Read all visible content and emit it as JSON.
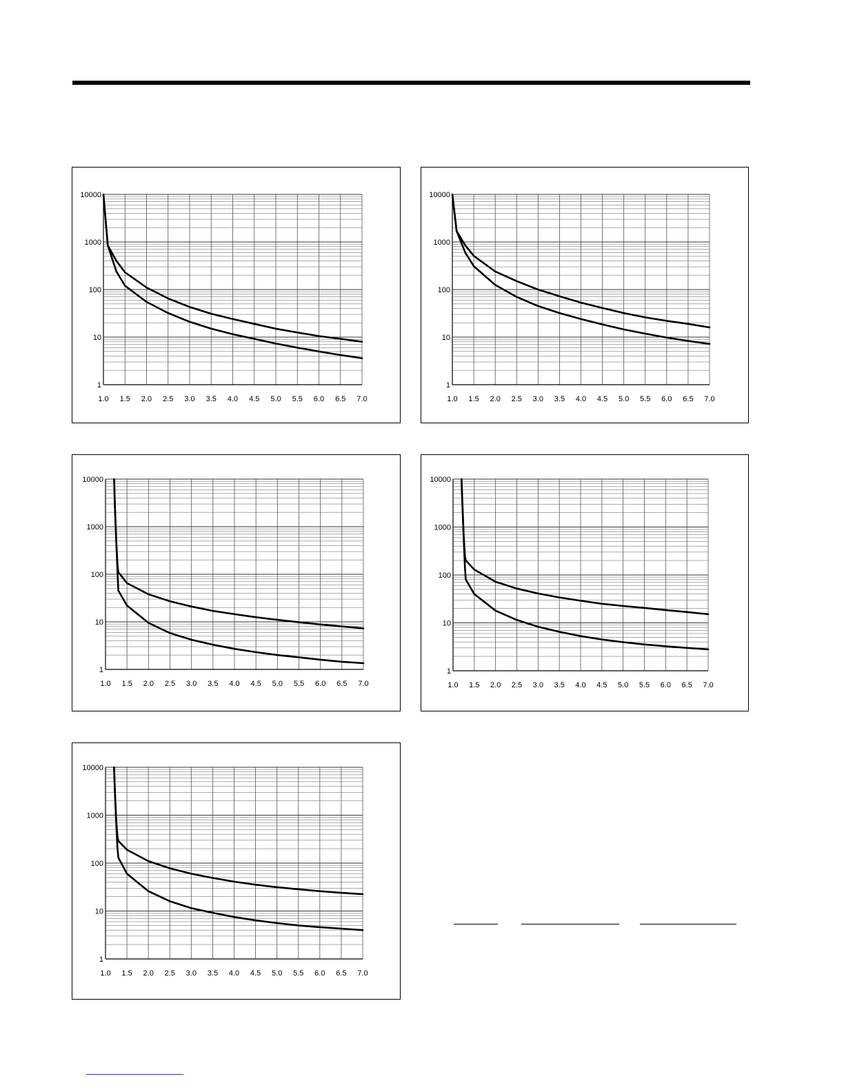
{
  "chart_data": [
    {
      "type": "line",
      "log_y": true,
      "ylim": [
        1,
        10000
      ],
      "xlim": [
        1.0,
        7.0
      ],
      "x_ticks": [
        "1.0",
        "1.5",
        "2.0",
        "2.5",
        "3.0",
        "3.5",
        "4.0",
        "4.5",
        "5.0",
        "5.5",
        "6.0",
        "6.5",
        "7.0"
      ],
      "y_ticks": [
        "1",
        "10",
        "100",
        "1000",
        "10000"
      ],
      "grid": true,
      "series": [
        {
          "x": [
            1.0,
            1.1,
            1.3,
            1.5,
            2.0,
            2.5,
            3.0,
            3.5,
            4.0,
            4.5,
            5.0,
            5.5,
            6.0,
            6.5,
            7.0
          ],
          "y": [
            10000,
            850,
            400,
            230,
            110,
            65,
            43,
            31,
            24,
            19,
            15,
            12.5,
            10.5,
            9.2,
            8
          ]
        },
        {
          "x": [
            1.0,
            1.1,
            1.3,
            1.5,
            2.0,
            2.5,
            3.0,
            3.5,
            4.0,
            4.5,
            5.0,
            5.5,
            6.0,
            6.5,
            7.0
          ],
          "y": [
            10000,
            850,
            240,
            120,
            55,
            32,
            21,
            15,
            11.5,
            9.2,
            7.3,
            6.0,
            5.0,
            4.2,
            3.6
          ]
        }
      ]
    },
    {
      "type": "line",
      "log_y": true,
      "ylim": [
        1,
        10000
      ],
      "xlim": [
        1.0,
        7.0
      ],
      "x_ticks": [
        "1.0",
        "1.5",
        "2.0",
        "2.5",
        "3.0",
        "3.5",
        "4.0",
        "4.5",
        "5.0",
        "5.5",
        "6.0",
        "6.5",
        "7.0"
      ],
      "y_ticks": [
        "1",
        "10",
        "100",
        "1000",
        "10000"
      ],
      "grid": true,
      "series": [
        {
          "x": [
            1.0,
            1.1,
            1.3,
            1.5,
            2.0,
            2.5,
            3.0,
            3.5,
            4.0,
            4.5,
            5.0,
            5.5,
            6.0,
            6.5,
            7.0
          ],
          "y": [
            10000,
            1700,
            850,
            510,
            240,
            150,
            100,
            72,
            53,
            41,
            32,
            26,
            22,
            19,
            16
          ]
        },
        {
          "x": [
            1.0,
            1.1,
            1.3,
            1.5,
            2.0,
            2.5,
            3.0,
            3.5,
            4.0,
            4.5,
            5.0,
            5.5,
            6.0,
            6.5,
            7.0
          ],
          "y": [
            10000,
            1700,
            600,
            310,
            125,
            70,
            45,
            32,
            24,
            18.5,
            14.5,
            11.8,
            9.8,
            8.3,
            7.2
          ]
        }
      ]
    },
    {
      "type": "line",
      "log_y": true,
      "ylim": [
        1,
        10000
      ],
      "xlim": [
        1.0,
        7.0
      ],
      "x_ticks": [
        "1.0",
        "1.5",
        "2.0",
        "2.5",
        "3.0",
        "3.5",
        "4.0",
        "4.5",
        "5.0",
        "5.5",
        "6.0",
        "6.5",
        "7.0"
      ],
      "y_ticks": [
        "1",
        "10",
        "100",
        "1000",
        "10000"
      ],
      "grid": true,
      "series": [
        {
          "x": [
            1.2,
            1.22,
            1.25,
            1.28,
            1.3,
            1.5,
            2.0,
            2.5,
            3.0,
            3.5,
            4.0,
            4.5,
            5.0,
            5.5,
            6.0,
            6.5,
            7.0
          ],
          "y": [
            10000,
            2500,
            500,
            150,
            110,
            65,
            38,
            27,
            21,
            17,
            14.5,
            12.5,
            11,
            9.8,
            8.8,
            8,
            7.3
          ]
        },
        {
          "x": [
            1.2,
            1.22,
            1.25,
            1.28,
            1.3,
            1.5,
            2.0,
            2.5,
            3.0,
            3.5,
            4.0,
            4.5,
            5.0,
            5.5,
            6.0,
            6.5,
            7.0
          ],
          "y": [
            10000,
            2500,
            500,
            100,
            45,
            22,
            9.5,
            5.8,
            4.2,
            3.3,
            2.7,
            2.3,
            2.0,
            1.8,
            1.6,
            1.45,
            1.35
          ]
        }
      ]
    },
    {
      "type": "line",
      "log_y": true,
      "ylim": [
        1,
        10000
      ],
      "xlim": [
        1.0,
        7.0
      ],
      "x_ticks": [
        "1.0",
        "1.5",
        "2.0",
        "2.5",
        "3.0",
        "3.5",
        "4.0",
        "4.5",
        "5.0",
        "5.5",
        "6.0",
        "6.5",
        "7.0"
      ],
      "y_ticks": [
        "1",
        "10",
        "100",
        "1000",
        "10000"
      ],
      "grid": true,
      "series": [
        {
          "x": [
            1.2,
            1.22,
            1.25,
            1.28,
            1.3,
            1.5,
            2.0,
            2.5,
            3.0,
            3.5,
            4.0,
            4.5,
            5.0,
            5.5,
            6.0,
            6.5,
            7.0
          ],
          "y": [
            10000,
            3000,
            700,
            250,
            200,
            130,
            72,
            52,
            41,
            34,
            29,
            25,
            22.5,
            20.5,
            18.5,
            16.8,
            15.2
          ]
        },
        {
          "x": [
            1.2,
            1.22,
            1.25,
            1.28,
            1.3,
            1.5,
            2.0,
            2.5,
            3.0,
            3.5,
            4.0,
            4.5,
            5.0,
            5.5,
            6.0,
            6.5,
            7.0
          ],
          "y": [
            10000,
            3000,
            600,
            140,
            80,
            40,
            18,
            11.5,
            8.3,
            6.5,
            5.3,
            4.5,
            3.95,
            3.55,
            3.25,
            3.0,
            2.8
          ]
        }
      ]
    },
    {
      "type": "line",
      "log_y": true,
      "ylim": [
        1,
        10000
      ],
      "xlim": [
        1.0,
        7.0
      ],
      "x_ticks": [
        "1.0",
        "1.5",
        "2.0",
        "2.5",
        "3.0",
        "3.5",
        "4.0",
        "4.5",
        "5.0",
        "5.5",
        "6.0",
        "6.5",
        "7.0"
      ],
      "y_ticks": [
        "1",
        "10",
        "100",
        "1000",
        "10000"
      ],
      "grid": true,
      "series": [
        {
          "x": [
            1.2,
            1.22,
            1.25,
            1.28,
            1.3,
            1.5,
            2.0,
            2.5,
            3.0,
            3.5,
            4.0,
            4.5,
            5.0,
            5.5,
            6.0,
            6.5,
            7.0
          ],
          "y": [
            10000,
            3000,
            800,
            350,
            290,
            190,
            110,
            78,
            60,
            49,
            41,
            35.5,
            31.5,
            28.5,
            26,
            24,
            22.5
          ]
        },
        {
          "x": [
            1.2,
            1.22,
            1.25,
            1.28,
            1.3,
            1.5,
            2.0,
            2.5,
            3.0,
            3.5,
            4.0,
            4.5,
            5.0,
            5.5,
            6.0,
            6.5,
            7.0
          ],
          "y": [
            10000,
            3000,
            700,
            200,
            130,
            60,
            26,
            16,
            11.5,
            9.2,
            7.5,
            6.4,
            5.6,
            5.0,
            4.6,
            4.3,
            4.0
          ]
        }
      ]
    }
  ]
}
